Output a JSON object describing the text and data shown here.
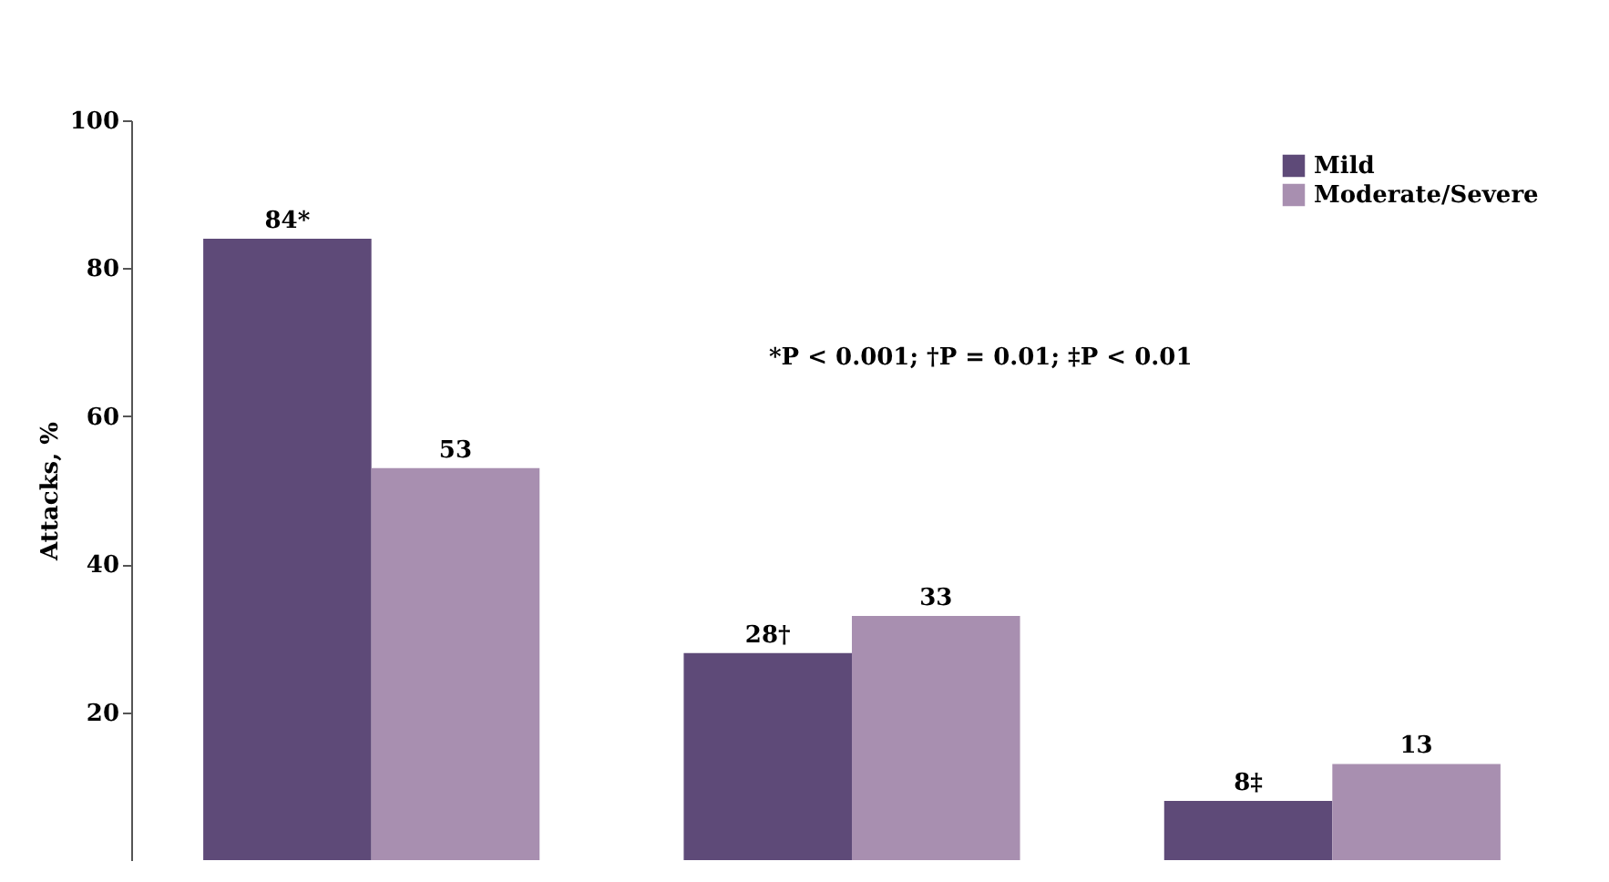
{
  "chart_data": {
    "type": "bar",
    "ylabel": "Attacks, %",
    "categories": [
      null,
      null,
      null
    ],
    "series": [
      {
        "name": "Mild",
        "color": "#5e4a78",
        "values": [
          84,
          28,
          8
        ],
        "value_labels": [
          "84*",
          "28†",
          "8‡"
        ]
      },
      {
        "name": "Moderate/Severe",
        "color": "#a88fb0",
        "values": [
          53,
          33,
          13
        ],
        "value_labels": [
          "53",
          "33",
          "13"
        ]
      }
    ],
    "ylim": [
      0,
      100
    ],
    "yticks": [
      20,
      40,
      60,
      80,
      100
    ],
    "grid": false,
    "legend": "top right",
    "annotations": [
      "*P < 0.001; †P = 0.01; ‡P < 0.01"
    ]
  }
}
